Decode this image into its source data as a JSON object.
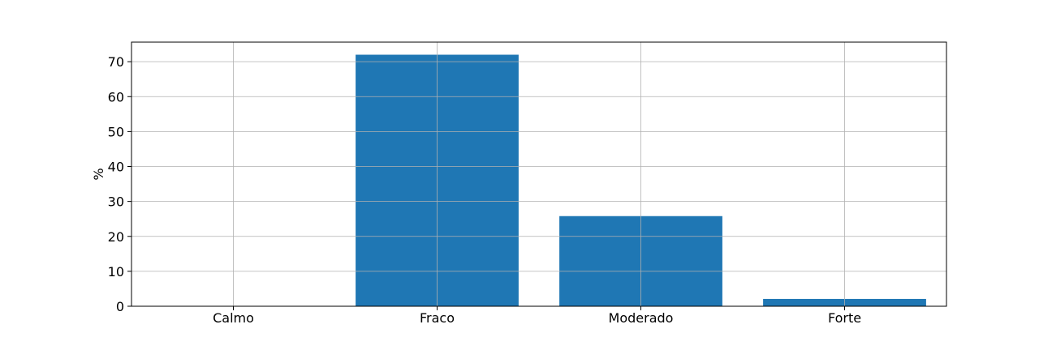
{
  "chart_data": {
    "type": "bar",
    "title": "",
    "xlabel": "",
    "ylabel": "%",
    "categories": [
      "Calmo",
      "Fraco",
      "Moderado",
      "Forte"
    ],
    "values": [
      0,
      72,
      25.8,
      2.1
    ],
    "ylim": [
      0,
      75.6
    ],
    "yticks": [
      0,
      10,
      20,
      30,
      40,
      50,
      60,
      70
    ],
    "grid": true,
    "legend": "none",
    "bar_color": "#1f77b4"
  }
}
